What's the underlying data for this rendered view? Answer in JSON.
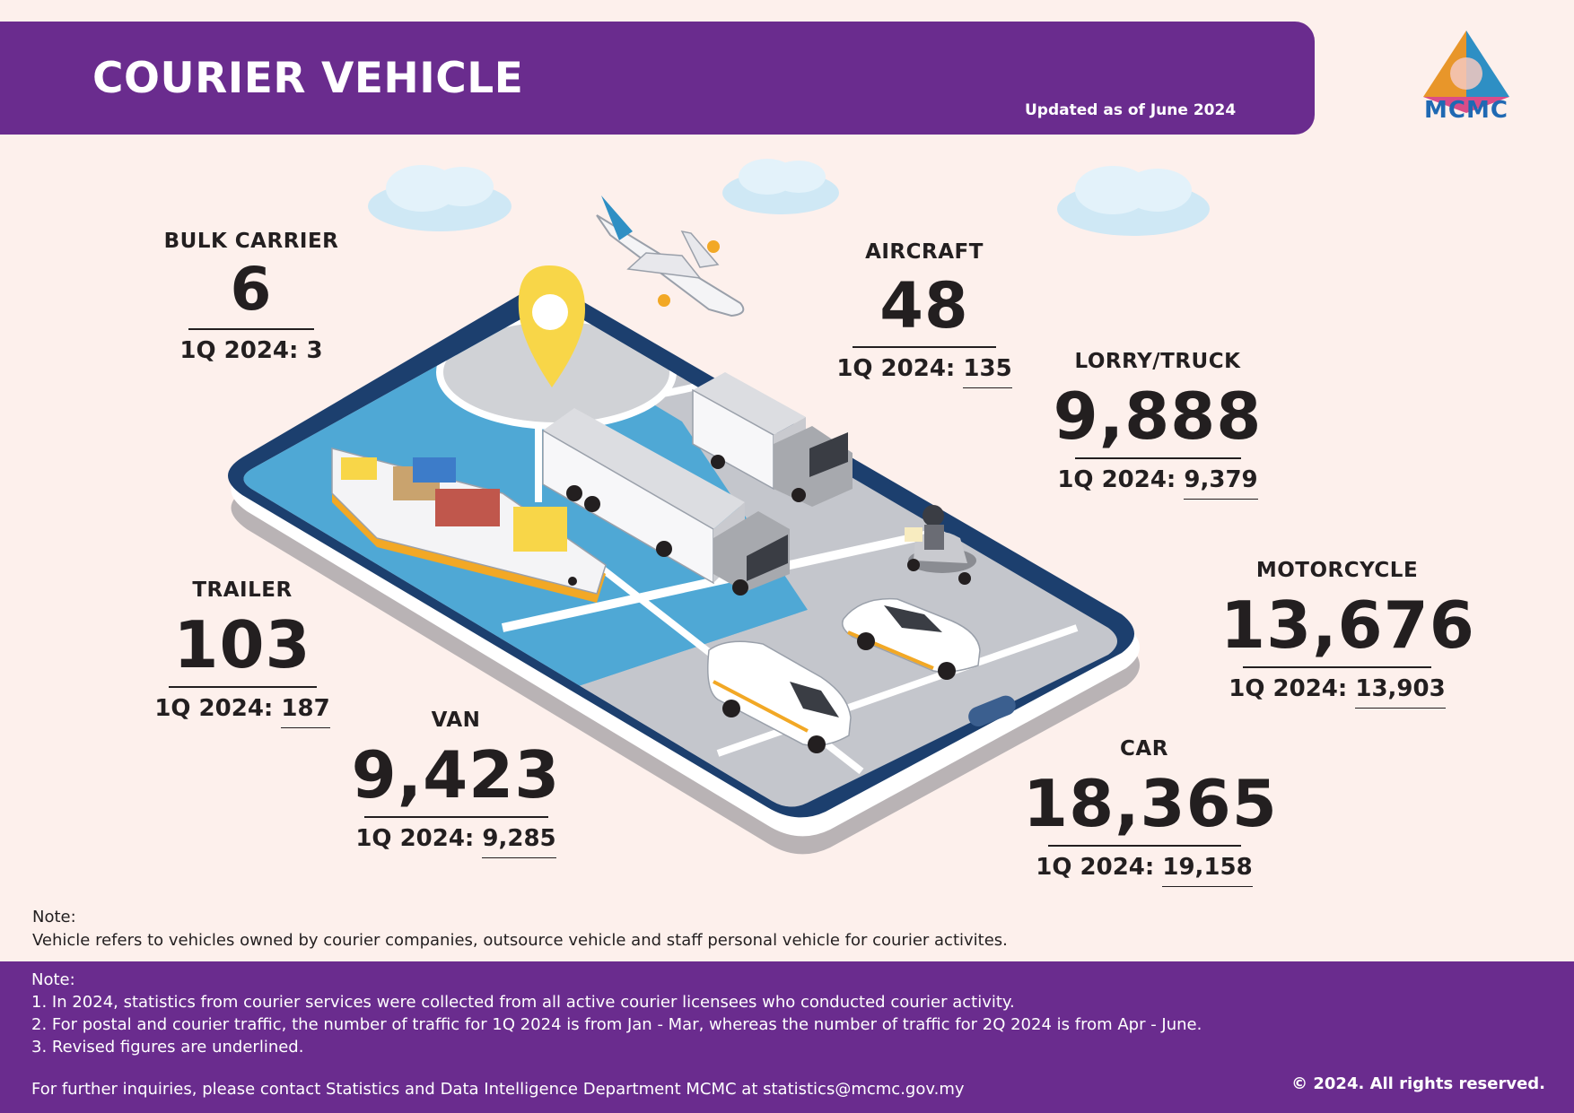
{
  "header": {
    "title": "COURIER VEHICLE",
    "updated": "Updated as of June 2024",
    "logo_text": "MCMC"
  },
  "stats": {
    "bulk_carrier": {
      "label": "BULK CARRIER",
      "value": "6",
      "prev_prefix": "1Q 2024:",
      "prev_value": "3",
      "revised": false
    },
    "aircraft": {
      "label": "AIRCRAFT",
      "value": "48",
      "prev_prefix": "1Q 2024:",
      "prev_value": "135",
      "revised": true
    },
    "lorry_truck": {
      "label": "LORRY/TRUCK",
      "value": "9,888",
      "prev_prefix": "1Q 2024:",
      "prev_value": "9,379",
      "revised": true
    },
    "motorcycle": {
      "label": "MOTORCYCLE",
      "value": "13,676",
      "prev_prefix": "1Q 2024:",
      "prev_value": "13,903",
      "revised": true
    },
    "trailer": {
      "label": "TRAILER",
      "value": "103",
      "prev_prefix": "1Q 2024:",
      "prev_value": "187",
      "revised": true
    },
    "van": {
      "label": "VAN",
      "value": "9,423",
      "prev_prefix": "1Q 2024:",
      "prev_value": "9,285",
      "revised": true
    },
    "car": {
      "label": "CAR",
      "value": "18,365",
      "prev_prefix": "1Q 2024:",
      "prev_value": "19,158",
      "revised": true
    }
  },
  "note_top": {
    "title": "Note:",
    "text": "Vehicle refers to vehicles owned by courier companies, outsource vehicle and staff personal vehicle for courier activites."
  },
  "footer": {
    "title": "Note:",
    "notes": [
      "1. In 2024, statistics from courier services were collected from all active courier licensees who conducted courier activity.",
      "2. For postal and courier traffic, the number of traffic for 1Q 2024 is from Jan - Mar, whereas the number of traffic for 2Q 2024 is from Apr - June.",
      "3. Revised figures are underlined."
    ],
    "contact": "For further inquiries, please contact Statistics and Data Intelligence Department MCMC at statistics@mcmc.gov.my",
    "copyright": "© 2024. All rights reserved."
  },
  "colors": {
    "purple": "#6a2c8e",
    "background": "#fdf0ec",
    "phone_frame": "#1c3f6e",
    "water": "#4fa8d5",
    "road": "#c4c6cc"
  },
  "icons": [
    "cloud-icon",
    "airplane-icon",
    "location-pin-icon",
    "ship-icon",
    "trailer-truck-icon",
    "box-truck-icon",
    "motorcycle-icon",
    "car-icon",
    "van-icon",
    "smartphone-icon"
  ]
}
